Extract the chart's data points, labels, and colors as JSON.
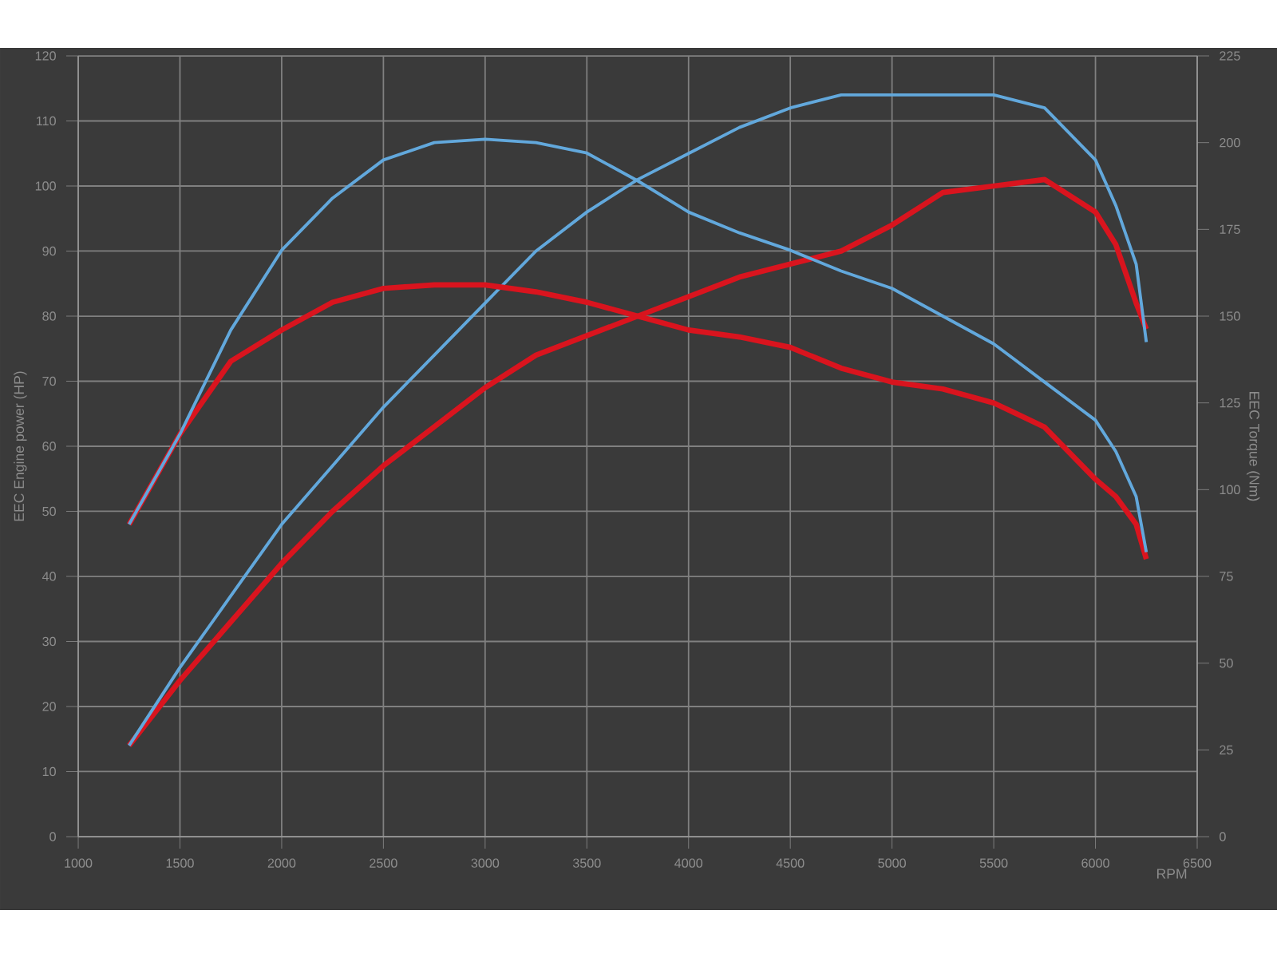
{
  "chart_data": {
    "type": "line",
    "xlabel": "RPM",
    "ylabel": "EEC Engine power (HP)",
    "y2label": "EEC Torque (Nm)",
    "xlim": [
      1000,
      6500
    ],
    "xticks": [
      1000,
      1500,
      2000,
      2500,
      3000,
      3500,
      4000,
      4500,
      5000,
      5500,
      6000,
      6500
    ],
    "ylim": [
      0,
      120
    ],
    "yticks": [
      0,
      10,
      20,
      30,
      40,
      50,
      60,
      70,
      80,
      90,
      100,
      110,
      120
    ],
    "y2lim": [
      0,
      225
    ],
    "y2ticks": [
      0,
      25,
      50,
      75,
      100,
      125,
      150,
      175,
      200,
      225
    ],
    "grid": true,
    "line_style": "solid",
    "marker": "none",
    "x": [
      1250,
      1500,
      1750,
      2000,
      2250,
      2500,
      2750,
      3000,
      3250,
      3500,
      3750,
      4000,
      4250,
      4500,
      4750,
      5000,
      5250,
      5500,
      5750,
      6000,
      6100,
      6200,
      6250
    ],
    "series": [
      {
        "color": "#62a8dc",
        "values": [
          14,
          26,
          37,
          48,
          57,
          66,
          74,
          82,
          90,
          96,
          101,
          105,
          109,
          112,
          114,
          114,
          114,
          114,
          112,
          104,
          97,
          88,
          76
        ]
      },
      {
        "color": "#d9141e",
        "values": [
          14,
          24,
          33,
          42,
          50,
          57,
          63,
          69,
          74,
          77,
          80,
          83,
          86,
          88,
          90,
          94,
          99,
          100,
          101,
          96,
          91,
          82,
          78
        ]
      },
      {
        "color": "#62a8dc",
        "axis": "y2",
        "values": [
          90,
          116,
          146,
          169,
          184,
          195,
          200,
          201,
          200,
          197,
          189,
          180,
          174,
          169,
          163,
          158,
          150,
          142,
          131,
          120,
          111,
          98,
          82
        ]
      },
      {
        "color": "#d9141e",
        "axis": "y2",
        "values": [
          90,
          116,
          137,
          146,
          154,
          158,
          159,
          159,
          157,
          154,
          150,
          146,
          144,
          141,
          135,
          131,
          129,
          125,
          118,
          103,
          98,
          90,
          80
        ]
      }
    ]
  }
}
